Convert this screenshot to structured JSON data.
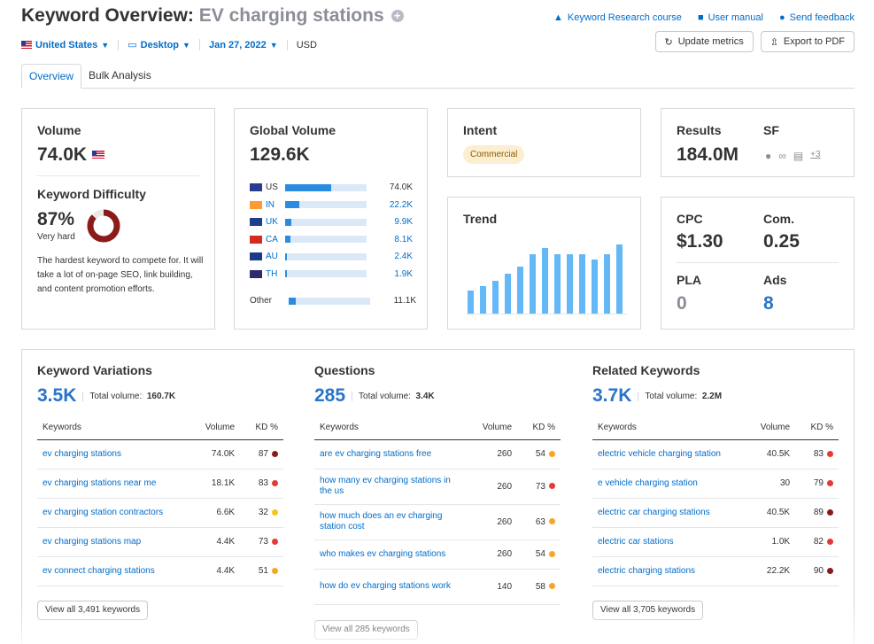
{
  "header": {
    "title_prefix": "Keyword Overview:",
    "keyword": "EV charging stations",
    "links": [
      {
        "icon": "graduation-icon",
        "label": "Keyword Research course"
      },
      {
        "icon": "book-icon",
        "label": "User manual"
      },
      {
        "icon": "chat-icon",
        "label": "Send feedback"
      }
    ],
    "country": "United States",
    "device": "Desktop",
    "date": "Jan 27, 2022",
    "currency": "USD",
    "update_btn": "Update metrics",
    "export_btn": "Export to PDF"
  },
  "tabs": [
    {
      "label": "Overview",
      "active": true
    },
    {
      "label": "Bulk Analysis",
      "active": false
    }
  ],
  "volume": {
    "title": "Volume",
    "value": "74.0K"
  },
  "kd": {
    "title": "Keyword Difficulty",
    "percent": "87%",
    "label": "Very hard",
    "value": 87,
    "description": "The hardest keyword to compete for. It will take a lot of on-page SEO, link building, and content promotion efforts."
  },
  "global_volume": {
    "title": "Global Volume",
    "value": "129.6K",
    "rows": [
      {
        "code": "US",
        "value": "74.0K",
        "fraction": 0.57
      },
      {
        "code": "IN",
        "value": "22.2K",
        "fraction": 0.17
      },
      {
        "code": "UK",
        "value": "9.9K",
        "fraction": 0.08
      },
      {
        "code": "CA",
        "value": "8.1K",
        "fraction": 0.06
      },
      {
        "code": "AU",
        "value": "2.4K",
        "fraction": 0.02
      },
      {
        "code": "TH",
        "value": "1.9K",
        "fraction": 0.015
      }
    ],
    "other": {
      "label": "Other",
      "value": "11.1K",
      "fraction": 0.09
    }
  },
  "intent": {
    "title": "Intent",
    "badge": "Commercial"
  },
  "trend": {
    "title": "Trend",
    "values": [
      0.35,
      0.42,
      0.5,
      0.6,
      0.72,
      0.9,
      1.0,
      0.9,
      0.9,
      0.9,
      0.82,
      0.9,
      1.05
    ]
  },
  "results": {
    "title": "Results",
    "value": "184.0M",
    "sf_title": "SF",
    "sf_more": "+3"
  },
  "cpc": {
    "cpc_label": "CPC",
    "cpc_value": "$1.30",
    "com_label": "Com.",
    "com_value": "0.25",
    "pla_label": "PLA",
    "pla_value": "0",
    "ads_label": "Ads",
    "ads_value": "8"
  },
  "panels": [
    {
      "title": "Keyword Variations",
      "count": "3.5K",
      "total_label": "Total volume:",
      "total_value": "160.7K",
      "columns": [
        "Keywords",
        "Volume",
        "KD %"
      ],
      "rows": [
        {
          "keyword": "ev charging stations",
          "volume": "74.0K",
          "kd": "87",
          "color": "#8b1a1a"
        },
        {
          "keyword": "ev charging stations near me",
          "volume": "18.1K",
          "kd": "83",
          "color": "#e53935"
        },
        {
          "keyword": "ev charging station contractors",
          "volume": "6.6K",
          "kd": "32",
          "color": "#f5c518"
        },
        {
          "keyword": "ev charging stations map",
          "volume": "4.4K",
          "kd": "73",
          "color": "#e53935"
        },
        {
          "keyword": "ev connect charging stations",
          "volume": "4.4K",
          "kd": "51",
          "color": "#f5a623"
        }
      ],
      "view_all": "View all 3,491 keywords"
    },
    {
      "title": "Questions",
      "count": "285",
      "total_label": "Total volume:",
      "total_value": "3.4K",
      "columns": [
        "Keywords",
        "Volume",
        "KD %"
      ],
      "rows": [
        {
          "keyword": "are ev charging stations free",
          "volume": "260",
          "kd": "54",
          "color": "#f5a623"
        },
        {
          "keyword": "how many ev charging stations in the us",
          "volume": "260",
          "kd": "73",
          "color": "#e53935"
        },
        {
          "keyword": "how much does an ev charging station cost",
          "volume": "260",
          "kd": "63",
          "color": "#f5a623"
        },
        {
          "keyword": "who makes ev charging stations",
          "volume": "260",
          "kd": "54",
          "color": "#f5a623"
        },
        {
          "keyword": "how do ev charging stations work",
          "volume": "140",
          "kd": "58",
          "color": "#f5a623"
        }
      ],
      "view_all": "View all 285 keywords"
    },
    {
      "title": "Related Keywords",
      "count": "3.7K",
      "total_label": "Total volume:",
      "total_value": "2.2M",
      "columns": [
        "Keywords",
        "Volume",
        "KD %"
      ],
      "rows": [
        {
          "keyword": "electric vehicle charging station",
          "volume": "40.5K",
          "kd": "83",
          "color": "#e53935"
        },
        {
          "keyword": "e vehicle charging station",
          "volume": "30",
          "kd": "79",
          "color": "#e53935"
        },
        {
          "keyword": "electric car charging stations",
          "volume": "40.5K",
          "kd": "89",
          "color": "#8b1a1a"
        },
        {
          "keyword": "electric car stations",
          "volume": "1.0K",
          "kd": "82",
          "color": "#e53935"
        },
        {
          "keyword": "electric charging stations",
          "volume": "22.2K",
          "kd": "90",
          "color": "#8b1a1a"
        }
      ],
      "view_all": "View all 3,705 keywords"
    }
  ]
}
